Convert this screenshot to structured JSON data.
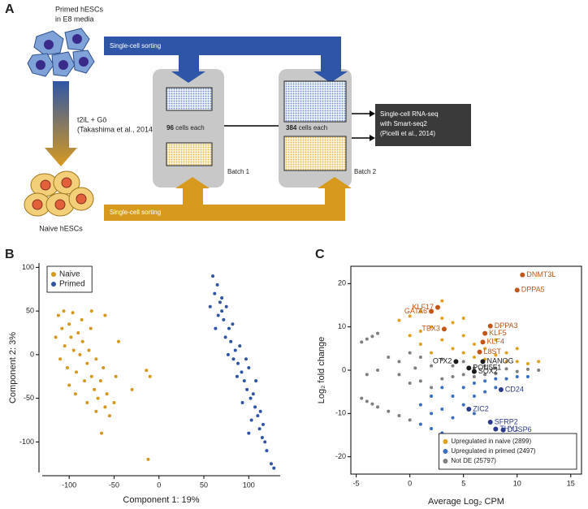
{
  "panel_a": {
    "panel": "A",
    "primed_line1": "Primed hESCs",
    "primed_line2": "in E8 media",
    "sorting_top": "Single-cell sorting",
    "sorting_bottom": "Single-cell sorting",
    "conversion_line1": "t2iL + Gö",
    "conversion_line2": "(Takashima et al., 2014)",
    "naive": "Naive hESCs",
    "batch1_count": "96",
    "batch1_suffix": "cells each",
    "batch1": "Batch 1",
    "batch2_count": "384",
    "batch2_suffix": "cells each",
    "batch2": "Batch 2",
    "seq_line1": "Single-cell RNA-seq",
    "seq_line2": "with Smart-seq2",
    "seq_line3": "(Picelli et al., 2014)"
  },
  "chart_data": [
    {
      "type": "scatter",
      "panel": "B",
      "xlabel": "Component 1: 19%",
      "ylabel": "Component 2: 3%",
      "xlim": [
        -130,
        135
      ],
      "xticks": [
        -100,
        -50,
        0,
        50,
        100
      ],
      "ylim": [
        -135,
        105
      ],
      "yticks": [
        -100,
        -50,
        0,
        50,
        100
      ],
      "frame": "axes",
      "legend": "upper left",
      "series": [
        {
          "name": "Naive",
          "color": "#d4981c",
          "x": [
            -112,
            -108,
            -105,
            -110,
            -100,
            -98,
            -95,
            -102,
            -90,
            -88,
            -92,
            -85,
            -80,
            -83,
            -78,
            -75,
            -72,
            -70,
            -68,
            -65,
            -60,
            -62,
            -58,
            -55,
            -115,
            -106,
            -96,
            -86,
            -76,
            -100,
            -93,
            -80,
            -70,
            -64,
            -50,
            -45,
            -48,
            -10,
            -14,
            -12,
            -30,
            -75,
            -60
          ],
          "values": [
            45,
            30,
            10,
            -5,
            35,
            20,
            5,
            -15,
            25,
            0,
            -20,
            15,
            -10,
            -30,
            5,
            -25,
            -40,
            -5,
            -50,
            -30,
            -60,
            -15,
            -45,
            -70,
            20,
            50,
            48,
            40,
            30,
            -35,
            -45,
            -55,
            -65,
            -90,
            -55,
            15,
            -25,
            -25,
            -18,
            -120,
            -40,
            50,
            45
          ]
        },
        {
          "name": "Primed",
          "color": "#2f54a3",
          "x": [
            60,
            62,
            65,
            68,
            70,
            66,
            72,
            75,
            78,
            74,
            80,
            82,
            85,
            83,
            88,
            90,
            92,
            95,
            87,
            98,
            100,
            102,
            105,
            107,
            110,
            103,
            112,
            115,
            118,
            120,
            125,
            57,
            63,
            70,
            77,
            93,
            97,
            108,
            113,
            116,
            128,
            100
          ],
          "values": [
            90,
            70,
            80,
            60,
            50,
            45,
            40,
            55,
            30,
            20,
            15,
            35,
            5,
            -5,
            -10,
            10,
            -20,
            -30,
            -25,
            -40,
            -15,
            -50,
            -45,
            -60,
            -70,
            -75,
            -85,
            -95,
            -100,
            -110,
            -125,
            55,
            30,
            65,
            0,
            -55,
            -5,
            -30,
            -65,
            -80,
            -130,
            -90
          ]
        }
      ]
    },
    {
      "type": "scatter",
      "panel": "C",
      "xlabel": "Average Log₂ CPM",
      "ylabel": "Log₂ fold change",
      "xlim": [
        -5.5,
        16
      ],
      "xticks": [
        -5,
        0,
        5,
        10,
        15
      ],
      "ylim": [
        -24,
        24
      ],
      "yticks": [
        -20,
        -10,
        0,
        10,
        20
      ],
      "frame": "box",
      "legend": "lower right",
      "series": [
        {
          "name": "Upregulated in naive (2899)",
          "color": "#e0a020",
          "x": [
            -1,
            0,
            1,
            3,
            0,
            1,
            2,
            3,
            4,
            4,
            5,
            5,
            6,
            6,
            7,
            7,
            8,
            8,
            9,
            9,
            10,
            10,
            11,
            12,
            2,
            3,
            5,
            1
          ],
          "values": [
            11.5,
            12.5,
            13.5,
            16,
            8,
            6,
            10,
            7,
            5,
            11,
            8,
            4,
            6,
            3,
            5,
            2.5,
            3.5,
            7,
            2,
            4,
            2,
            5,
            1.5,
            2,
            4,
            12,
            12,
            9
          ]
        },
        {
          "name": "Upregulated in primed (2497)",
          "color": "#3a6fc0",
          "x": [
            1,
            2,
            3,
            4,
            5,
            1,
            2,
            3,
            3,
            4,
            4,
            5,
            5,
            6,
            6,
            7,
            7,
            8,
            8,
            9,
            10,
            11,
            6,
            2
          ],
          "values": [
            -12.5,
            -13.5,
            -14.5,
            -15.5,
            -16,
            -8,
            -6,
            -9,
            -4,
            -6,
            -11,
            -4,
            -8,
            -3,
            -6,
            -2.5,
            -5,
            -2,
            -4,
            -2,
            -1.5,
            -1.5,
            -10,
            -10
          ]
        },
        {
          "name": "Not DE (25797)",
          "color": "#808080",
          "x": [
            -4.5,
            -4,
            -3.5,
            -3,
            -4.5,
            -4,
            -3.5,
            -3,
            -2,
            -1,
            0,
            0,
            1,
            1,
            2,
            2,
            3,
            3,
            4,
            4,
            5,
            5,
            6,
            6,
            7,
            7,
            8,
            8,
            9,
            10,
            11,
            12,
            -1,
            0.5,
            -3,
            -4,
            -2,
            -1,
            0
          ],
          "values": [
            6.5,
            7.2,
            7.8,
            8.5,
            -6.5,
            -7.2,
            -7.8,
            -8.5,
            3,
            2,
            4,
            -3,
            3,
            -2.5,
            1,
            -4,
            2.5,
            -2,
            1,
            -1.5,
            2,
            -1,
            0.5,
            -1.5,
            1,
            -1,
            0.5,
            -0.8,
            0.3,
            -0.3,
            0.2,
            0,
            -1,
            0.5,
            0,
            -1,
            -9.5,
            -10.5,
            -11.5
          ]
        }
      ],
      "highlights": [
        {
          "label": "DNMT3L",
          "x": 10.5,
          "y": 22,
          "color": "#c0561a"
        },
        {
          "label": "DPPA5",
          "x": 10,
          "y": 18.5,
          "color": "#c0561a"
        },
        {
          "label": "KLF17",
          "x": 2.6,
          "y": 14.5,
          "color": "#c0561a"
        },
        {
          "label": "GATA6",
          "x": 2,
          "y": 13.6,
          "color": "#c0561a"
        },
        {
          "label": "TBX3",
          "x": 3.2,
          "y": 9.5,
          "color": "#c0561a"
        },
        {
          "label": "DPPA3",
          "x": 7.5,
          "y": 10.2,
          "color": "#c0561a"
        },
        {
          "label": "KLF5",
          "x": 7,
          "y": 8.5,
          "color": "#c0561a"
        },
        {
          "label": "KLF4",
          "x": 6.8,
          "y": 6.5,
          "color": "#c0561a"
        },
        {
          "label": "L8ST",
          "x": 6.5,
          "y": 4.2,
          "color": "#c0561a"
        },
        {
          "label": "OTX2",
          "x": 4.3,
          "y": 2,
          "color": "#1a1a1a"
        },
        {
          "label": "NANOG",
          "x": 6.8,
          "y": 2,
          "color": "#1a1a1a"
        },
        {
          "label": "POU5F1",
          "x": 5.5,
          "y": 0.5,
          "color": "#1a1a1a"
        },
        {
          "label": "SOX2",
          "x": 6,
          "y": -0.3,
          "color": "#1a1a1a"
        },
        {
          "label": "CD24",
          "x": 8.5,
          "y": -4.5,
          "color": "#2b3a8c"
        },
        {
          "label": "ZIC2",
          "x": 5.5,
          "y": -9,
          "color": "#2b3a8c"
        },
        {
          "label": "SFRP2",
          "x": 7.5,
          "y": -12,
          "color": "#2b3a8c"
        },
        {
          "label": "THY1",
          "x": 8,
          "y": -13.6,
          "color": "#2b3a8c"
        },
        {
          "label": "DUSP6",
          "x": 8.7,
          "y": -13.8,
          "color": "#2b3a8c"
        }
      ]
    }
  ]
}
